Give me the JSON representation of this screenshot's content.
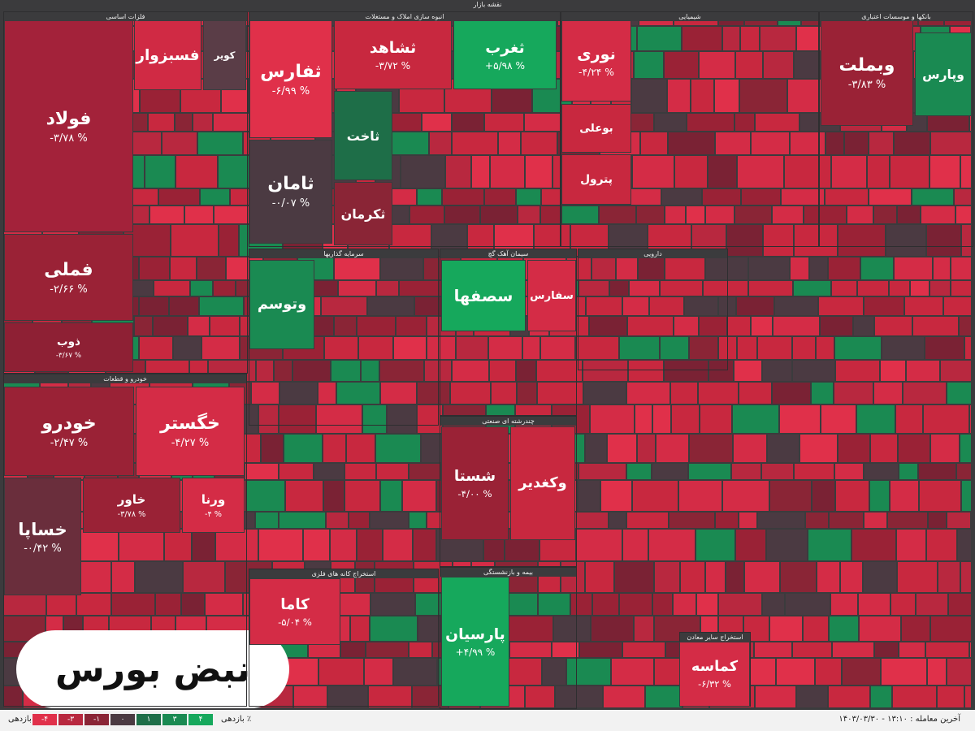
{
  "header": {
    "title": "نقشه بازار"
  },
  "logo": {
    "text": "نبض بورس"
  },
  "footer": {
    "legend_title": "بازدهی ٪",
    "last_trade": "آخرین معامله : ۱۳:۱۰ - ۱۴۰۳/۰۳/۳۰",
    "legend": [
      {
        "label": "-۴",
        "color": "#e0304a"
      },
      {
        "label": "-۳",
        "color": "#b8283f"
      },
      {
        "label": "-۱",
        "color": "#8a2536"
      },
      {
        "label": "۰",
        "color": "#4b3a42"
      },
      {
        "label": "۱",
        "color": "#1e6e48"
      },
      {
        "label": "۳",
        "color": "#1a8a52"
      },
      {
        "label": "۴",
        "color": "#16a85c"
      }
    ]
  },
  "sectors": [
    {
      "title": "فلزات اساسی",
      "tiles": [
        {
          "name": "فولاد",
          "change": "-۳/۷۸ %",
          "color": "#a3223a"
        },
        {
          "name": "فملی",
          "change": "-۲/۶۶ %",
          "color": "#9a2236"
        },
        {
          "name": "ذوب",
          "change": "-۳/۶۷ %",
          "color": "#8e2034"
        },
        {
          "name": "کویر",
          "color": "#5a3d47"
        },
        {
          "name": "فسبزوار",
          "color": "#d02a44"
        }
      ]
    },
    {
      "title": "انبوه سازی املاک و مستغلات",
      "tiles": [
        {
          "name": "ثفارس",
          "change": "-۶/۹۹ %",
          "color": "#e0304a"
        },
        {
          "name": "ثامان",
          "change": "-۰/۰۷ %",
          "color": "#4b3a42"
        },
        {
          "name": "ثشاهد",
          "change": "-۳/۷۲ %",
          "color": "#c8283f"
        },
        {
          "name": "ثغرب",
          "change": "+۵/۹۸ %",
          "color": "#16a85c"
        },
        {
          "name": "ثاخت",
          "color": "#1e6e48"
        },
        {
          "name": "ثکرمان",
          "color": "#8a2536"
        }
      ]
    },
    {
      "title": "شیمیایی",
      "tiles": [
        {
          "name": "نوری",
          "change": "-۴/۲۴ %",
          "color": "#d42c46"
        },
        {
          "name": "بوعلی",
          "color": "#c8283f"
        },
        {
          "name": "پترول",
          "color": "#c8283f"
        }
      ]
    },
    {
      "title": "بانکها و موسسات اعتباری",
      "tiles": [
        {
          "name": "وبملت",
          "change": "-۳/۸۳ %",
          "color": "#9a2236"
        },
        {
          "name": "وپارس",
          "color": "#1a8a52"
        }
      ]
    },
    {
      "title": "سرمایه گذاریها",
      "tiles": [
        {
          "name": "وتوسم",
          "color": "#1a8a52"
        }
      ]
    },
    {
      "title": "سیمان آهک گچ",
      "tiles": [
        {
          "name": "سصفها",
          "color": "#16a85c"
        },
        {
          "name": "سفارس",
          "color": "#d42c46"
        }
      ]
    },
    {
      "title": "دارویی",
      "tiles": []
    },
    {
      "title": "خودرو و قطعات",
      "tiles": [
        {
          "name": "خودرو",
          "change": "-۲/۴۷ %",
          "color": "#9a2236"
        },
        {
          "name": "خگستر",
          "change": "-۴/۲۷ %",
          "color": "#d42c46"
        },
        {
          "name": "خساپا",
          "change": "-۰/۴۲ %",
          "color": "#6a2e3c"
        },
        {
          "name": "خاور",
          "change": "-۳/۷۸ %",
          "color": "#9a2236"
        },
        {
          "name": "ورنا",
          "change": "-۴ %",
          "color": "#d42c46"
        }
      ]
    },
    {
      "title": "چندرشته ای صنعتی",
      "tiles": [
        {
          "name": "شستا",
          "change": "-۴/۰۰ %",
          "color": "#9a2236"
        },
        {
          "name": "وکغدیر",
          "color": "#c8283f"
        }
      ]
    },
    {
      "title": "استخراج کانه های فلزی",
      "tiles": [
        {
          "name": "کاما",
          "change": "-۵/۰۴ %",
          "color": "#d42c46"
        }
      ]
    },
    {
      "title": "بیمه و بازنشستگی",
      "tiles": [
        {
          "name": "پارسیان",
          "change": "+۴/۹۹ %",
          "color": "#16a85c"
        }
      ]
    },
    {
      "title": "استخراج سایر معادن",
      "tiles": [
        {
          "name": "کماسه",
          "change": "-۶/۳۲ %",
          "color": "#d42c46"
        }
      ]
    }
  ]
}
